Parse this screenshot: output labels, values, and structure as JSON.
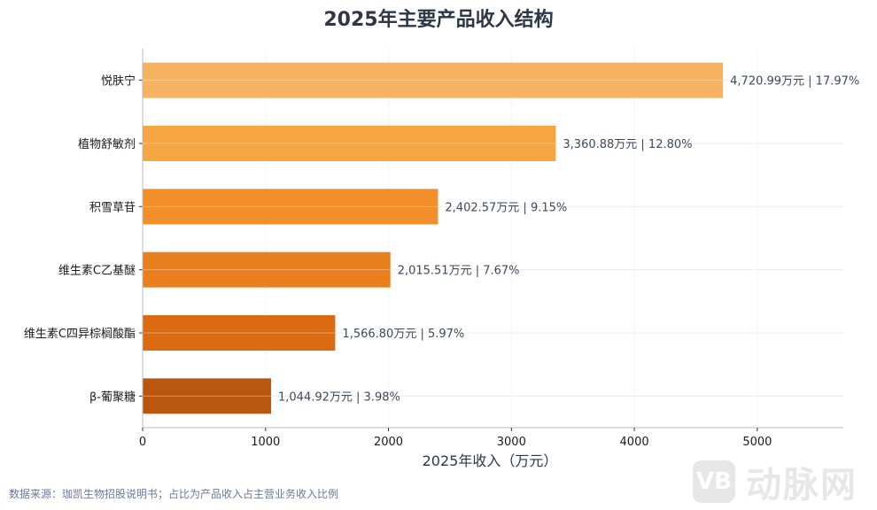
{
  "chart_data": {
    "type": "bar",
    "orientation": "horizontal",
    "title": "2025年主要产品收入结构",
    "xlabel": "2025年收入（万元）",
    "ylabel": "",
    "xlim": [
      0,
      5700
    ],
    "xticks": [
      0,
      1000,
      2000,
      3000,
      4000,
      5000
    ],
    "grid": true,
    "categories": [
      "悦肤宁",
      "植物舒敏剂",
      "积雪草苷",
      "维生素C乙基醚",
      "维生素C四异棕榈酸酯",
      "β-葡聚糖"
    ],
    "values": [
      4720.99,
      3360.88,
      2402.57,
      2015.51,
      1566.8,
      1044.92
    ],
    "data_labels": [
      "4,720.99万元 | 17.97%",
      "3,360.88万元 | 12.80%",
      "2,402.57万元 | 9.15%",
      "2,015.51万元 | 7.67%",
      "1,566.80万元 | 5.97%",
      "1,044.92万元 | 3.98%"
    ],
    "colors": [
      "#f7b360",
      "#f5a542",
      "#f28f2b",
      "#ea7f1e",
      "#db6a10",
      "#b9560f"
    ]
  },
  "source_note": "数据来源：珈凯生物招股说明书；占比为产品收入占主营业务收入比例",
  "watermark": {
    "logo": "VB",
    "text": "动脉网"
  }
}
